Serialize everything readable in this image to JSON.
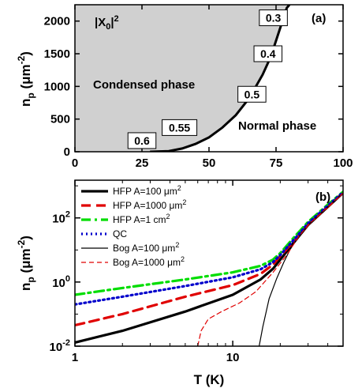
{
  "chart_data": [
    {
      "type": "area",
      "panel_label": "(a)",
      "xlim": [
        0,
        100
      ],
      "ylim": [
        0,
        2250
      ],
      "x_ticks": [
        "0",
        "25",
        "50",
        "75",
        "100"
      ],
      "x_tick_values": [
        0,
        25,
        50,
        75,
        100
      ],
      "y_ticks": [
        "0",
        "500",
        "1000",
        "1500",
        "2000"
      ],
      "y_tick_values": [
        0,
        500,
        1000,
        1500,
        2000
      ],
      "ylabel_main": "n",
      "ylabel_sub": "p",
      "ylabel_paren": " (μm",
      "ylabel_exp": "-2",
      "ylabel_close": ")",
      "legend_title_main": "|X",
      "legend_title_sub": "0",
      "legend_title_post": "|",
      "legend_title_exp": "2",
      "regions": [
        "Condensed phase",
        "Normal phase"
      ],
      "fill_color": "#d0d0d0",
      "boundary": {
        "x": [
          28,
          35,
          40,
          45,
          50,
          55,
          60,
          65,
          70,
          73,
          75,
          77,
          79,
          80
        ],
        "y": [
          0,
          10,
          50,
          120,
          220,
          370,
          560,
          820,
          1180,
          1450,
          1700,
          1950,
          2200,
          2250
        ]
      },
      "contour_labels": [
        {
          "text": "0.6",
          "x": 25,
          "y": 170
        },
        {
          "text": "0.55",
          "x": 39,
          "y": 370
        },
        {
          "text": "0.5",
          "x": 66,
          "y": 880
        },
        {
          "text": "0.4",
          "x": 72,
          "y": 1500
        },
        {
          "text": "0.3",
          "x": 74,
          "y": 2050
        }
      ]
    },
    {
      "type": "line",
      "panel_label": "(b)",
      "xscale": "log",
      "yscale": "log",
      "xlim": [
        1,
        50
      ],
      "ylim": [
        0.01,
        1500
      ],
      "x_ticks": [
        "1",
        "10"
      ],
      "x_tick_values": [
        1,
        10
      ],
      "y_ticks": [
        {
          "base": "10",
          "exp": "-2",
          "value": 0.01
        },
        {
          "base": "10",
          "exp": "0",
          "value": 1
        },
        {
          "base": "10",
          "exp": "2",
          "value": 100
        }
      ],
      "xlabel": "T (K)",
      "ylabel_main": "n",
      "ylabel_sub": "p",
      "ylabel_paren": " (μm",
      "ylabel_exp": "-2",
      "ylabel_close": ")",
      "legend_position": "top-left",
      "series": [
        {
          "label_text": "HFP A=100 μm",
          "label_exp": "2",
          "color": "#000000",
          "dash": "",
          "width": 3.2,
          "x": [
            1,
            2,
            5,
            10,
            15,
            18,
            20,
            25,
            30,
            40,
            50
          ],
          "y": [
            0.013,
            0.03,
            0.12,
            0.4,
            1.2,
            2.6,
            5,
            20,
            60,
            220,
            600
          ]
        },
        {
          "label_text": "HFP A=1000 μm",
          "label_exp": "2",
          "color": "#e00000",
          "dash": "12,7",
          "width": 3.2,
          "x": [
            1,
            2,
            5,
            10,
            15,
            18,
            20,
            25,
            30,
            40,
            50
          ],
          "y": [
            0.045,
            0.1,
            0.35,
            0.8,
            1.8,
            3.5,
            6.5,
            21,
            62,
            225,
            610
          ]
        },
        {
          "label_text": "HFP A=1 cm",
          "label_exp": "2",
          "color": "#00dd00",
          "dash": "12,5,3,5",
          "width": 3.2,
          "x": [
            1,
            2,
            5,
            10,
            15,
            18,
            20,
            25,
            30,
            40,
            50
          ],
          "y": [
            0.4,
            0.65,
            1.2,
            2.0,
            3.2,
            5.0,
            8.0,
            28,
            75,
            260,
            650
          ]
        },
        {
          "label_text": "QC",
          "label_exp": "",
          "color": "#0000cc",
          "dash": "2,4",
          "width": 3.2,
          "x": [
            1,
            2,
            5,
            10,
            15,
            18,
            20,
            25,
            30,
            40,
            50
          ],
          "y": [
            0.2,
            0.35,
            0.75,
            1.4,
            2.5,
            4.2,
            7.0,
            24,
            68,
            240,
            630
          ]
        },
        {
          "label_text": "Bog A=100 μm",
          "label_exp": "2",
          "color": "#000000",
          "dash": "",
          "width": 1.2,
          "x": [
            14.7,
            15.5,
            17,
            19,
            21,
            23,
            25,
            30,
            40,
            50
          ],
          "y": [
            0.01,
            0.04,
            0.3,
            1.3,
            4.0,
            10,
            19,
            60,
            220,
            600
          ]
        },
        {
          "label_text": "Bog A=1000 μm",
          "label_exp": "2",
          "color": "#e00000",
          "dash": "6,4",
          "width": 1.2,
          "x": [
            6.0,
            6.3,
            7,
            8.5,
            11,
            14,
            18,
            22,
            26,
            30,
            40,
            50
          ],
          "y": [
            0.01,
            0.03,
            0.07,
            0.12,
            0.22,
            0.5,
            2.0,
            7.0,
            25,
            60,
            220,
            600
          ]
        }
      ]
    }
  ]
}
